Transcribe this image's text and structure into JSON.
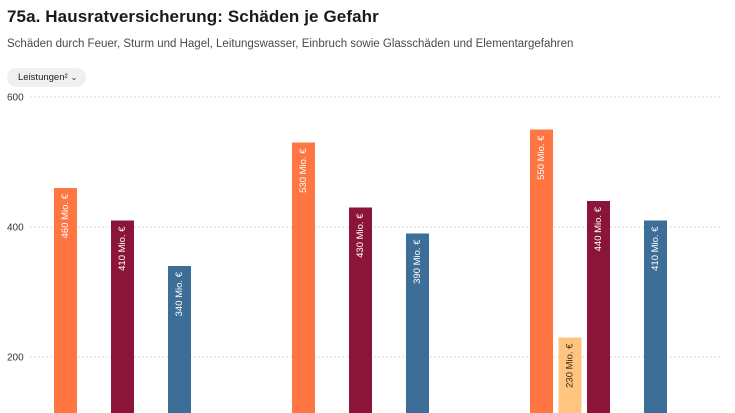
{
  "header": {
    "title": "75a. Hausratversicherung: Schäden je Gefahr",
    "subtitle": "Schäden durch Feuer, Sturm und Hagel, Leitungswasser, Einbruch sowie Glasschäden und Elementargefahren"
  },
  "controls": {
    "dropdown_label": "Leistungen²",
    "dropdown_icon": "chevron-down-icon"
  },
  "colors": {
    "orange": "#FF7643",
    "light_orange": "#FFC47F",
    "maroon": "#8B1538",
    "blue": "#3C6E97",
    "grid": "#d9d9d9"
  },
  "chart_data": {
    "type": "bar",
    "ylim": [
      150,
      600
    ],
    "yticks": [
      200,
      400,
      600
    ],
    "grid": true,
    "unit_suffix": " Mio. €",
    "groups": [
      {
        "bars": [
          {
            "value": 460,
            "label": "460 Mio. €",
            "color": "orange"
          },
          {
            "value": 410,
            "label": "410 Mio. €",
            "color": "maroon"
          },
          {
            "value": 340,
            "label": "340 Mio. €",
            "color": "blue"
          }
        ]
      },
      {
        "bars": [
          {
            "value": 530,
            "label": "530 Mio. €",
            "color": "orange"
          },
          {
            "value": 430,
            "label": "430 Mio. €",
            "color": "maroon"
          },
          {
            "value": 390,
            "label": "390 Mio. €",
            "color": "blue"
          }
        ]
      },
      {
        "bars": [
          {
            "value": 550,
            "label": "550 Mio. €",
            "color": "orange"
          },
          {
            "value": 230,
            "label": "230 Mio. €",
            "color": "light_orange"
          },
          {
            "value": 440,
            "label": "440 Mio. €",
            "color": "maroon"
          },
          {
            "value": 410,
            "label": "410 Mio. €",
            "color": "blue"
          }
        ]
      }
    ]
  }
}
